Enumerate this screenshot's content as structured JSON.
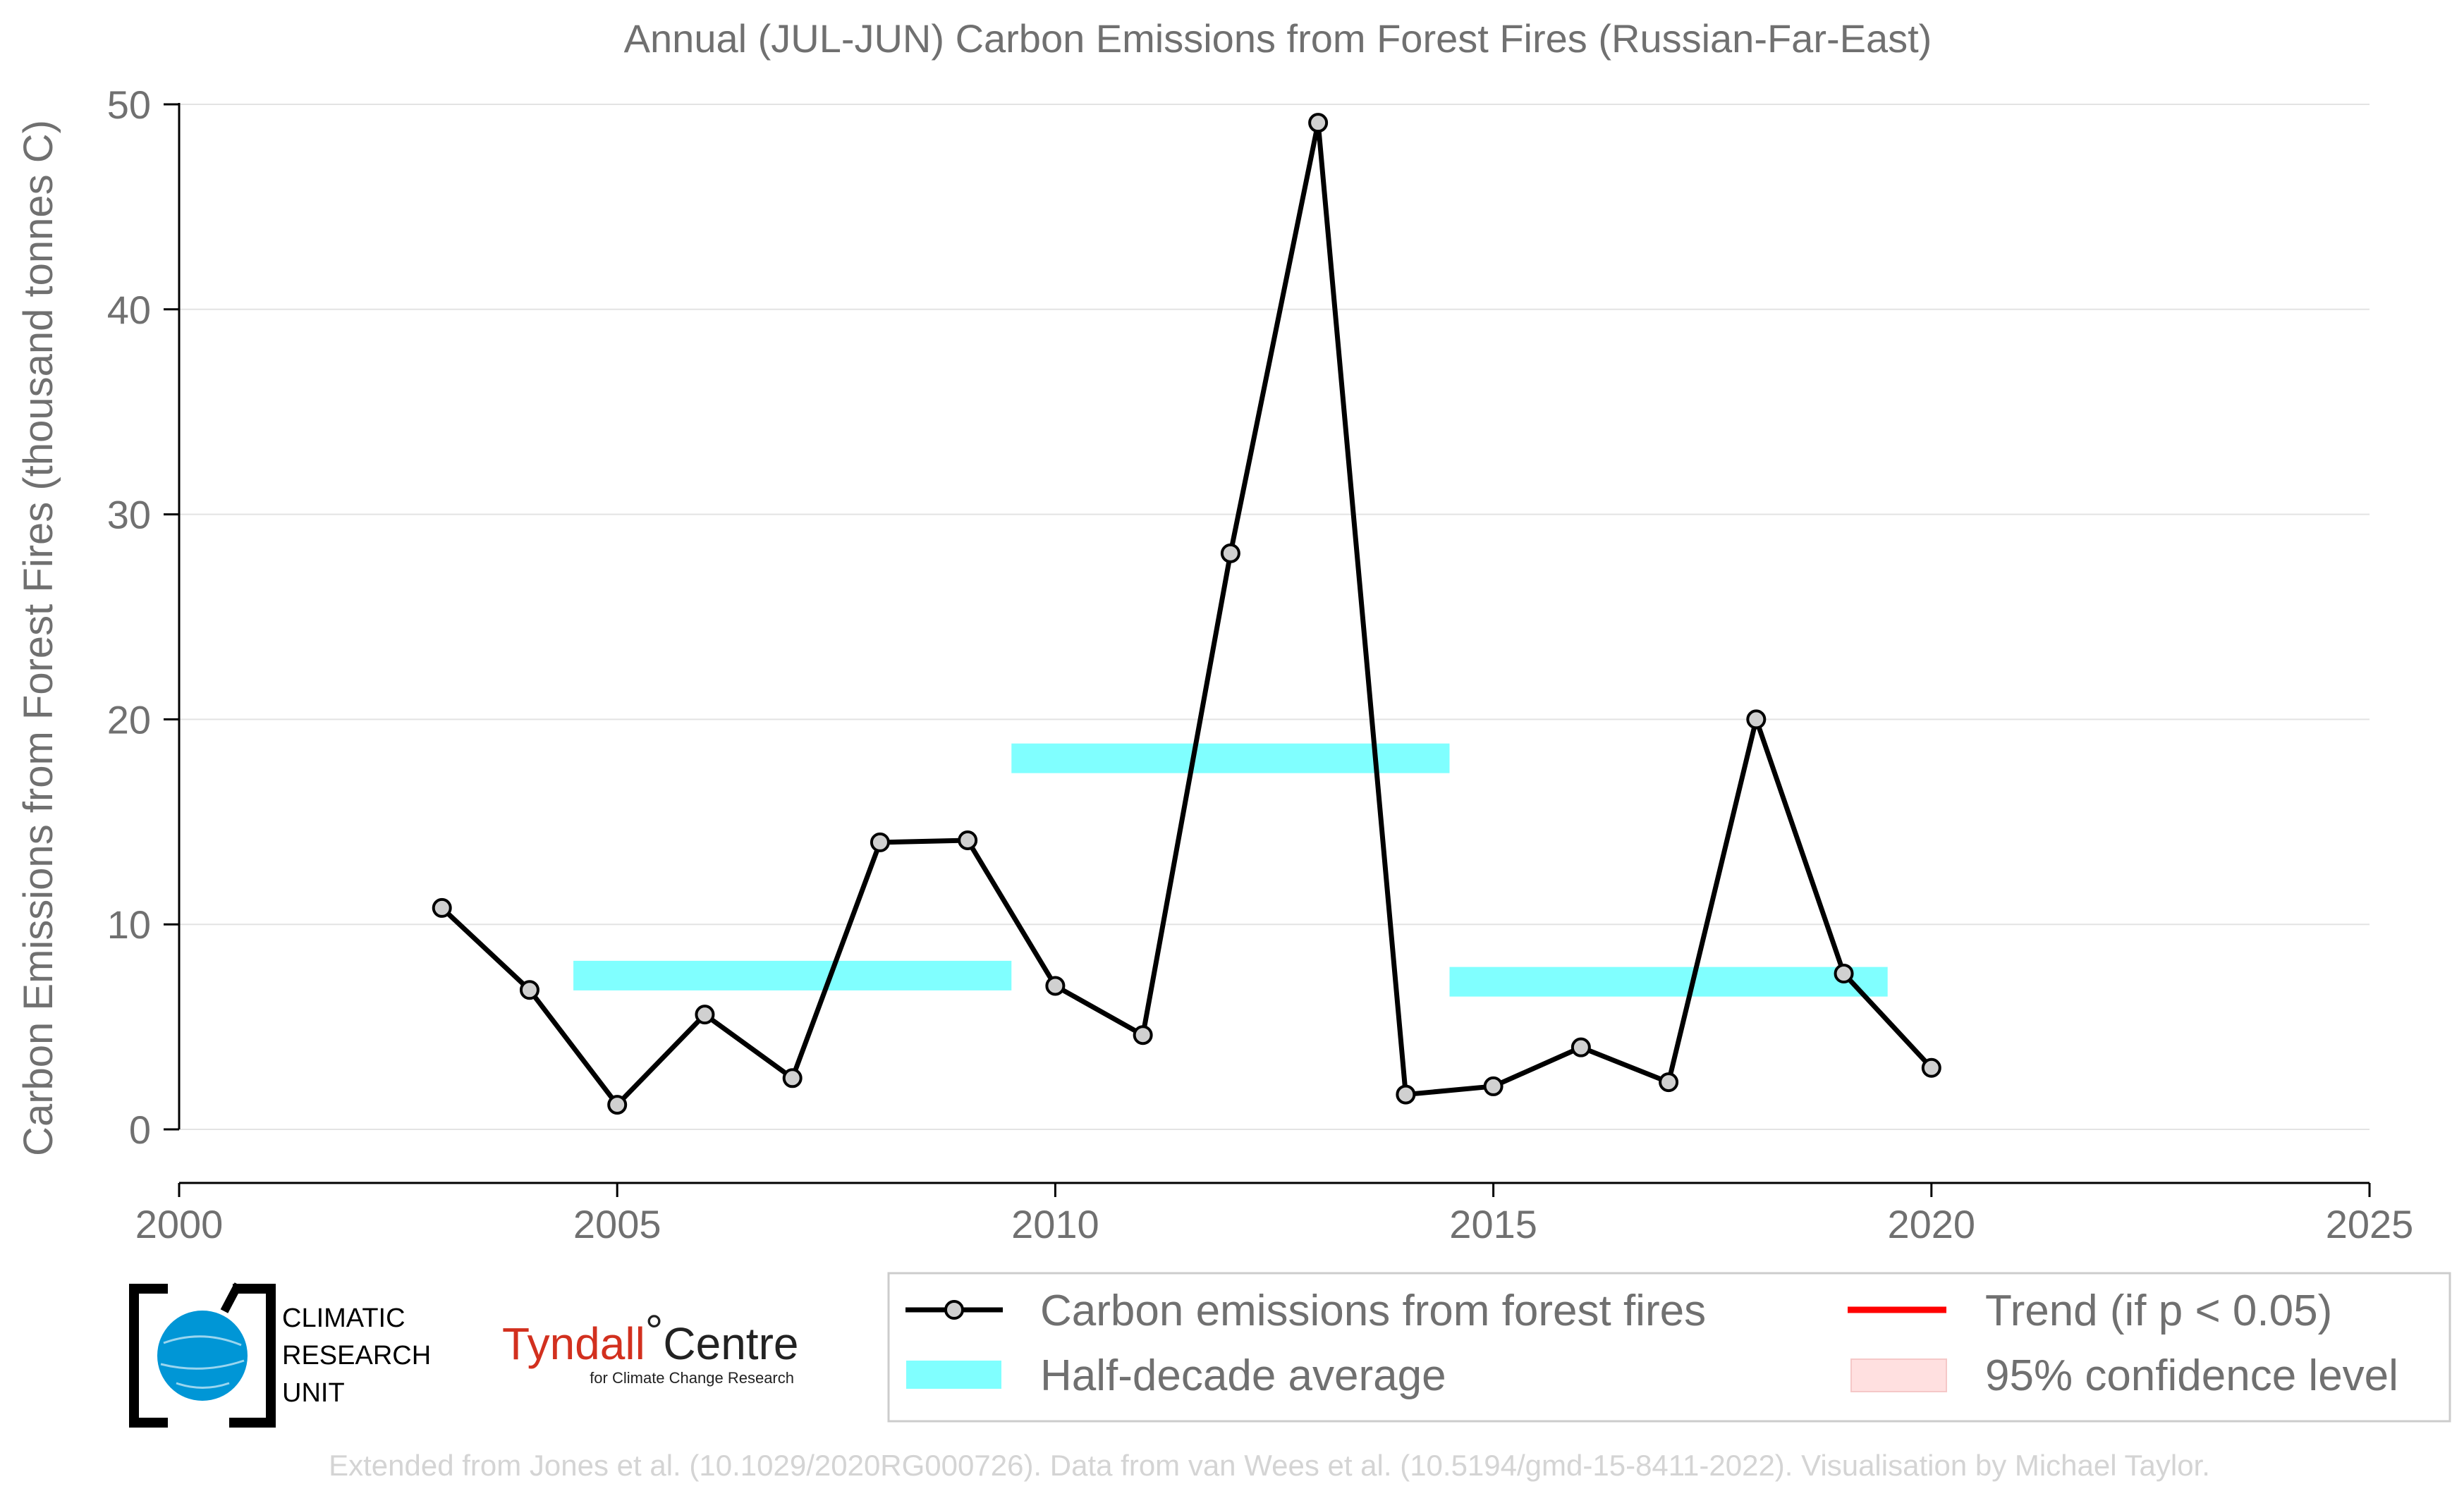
{
  "chart_data": {
    "type": "line",
    "title": "Annual (JUL-JUN) Carbon Emissions from Forest Fires (Russian-Far-East)",
    "xlabel": "",
    "ylabel": "Carbon Emissions from Forest Fires (thousand tonnes C)",
    "xlim": [
      2000,
      2025
    ],
    "ylim": [
      0,
      50
    ],
    "x_ticks": [
      "2000",
      "2005",
      "2010",
      "2015",
      "2020",
      "2025"
    ],
    "y_ticks": [
      "0",
      "10",
      "20",
      "30",
      "40",
      "50"
    ],
    "grid": "horizontal",
    "series": [
      {
        "name": "Carbon emissions from forest fires",
        "x": [
          2003,
          2004,
          2005,
          2006,
          2007,
          2008,
          2009,
          2010,
          2011,
          2012,
          2013,
          2014,
          2015,
          2016,
          2017,
          2018,
          2019,
          2020
        ],
        "values": [
          10.8,
          6.8,
          1.2,
          5.6,
          2.5,
          14.0,
          14.1,
          7.0,
          4.6,
          28.1,
          49.1,
          1.7,
          2.1,
          4.0,
          2.3,
          20.0,
          7.6,
          3.0
        ],
        "color": "#000000",
        "marker_fill": "#d0d0d0"
      }
    ],
    "half_decade_average": {
      "name": "Half-decade average",
      "color": "#80ffff",
      "segments": [
        {
          "x_start": 2004.5,
          "x_end": 2009.5,
          "value": 7.5
        },
        {
          "x_start": 2009.5,
          "x_end": 2014.5,
          "value": 18.1
        },
        {
          "x_start": 2014.5,
          "x_end": 2019.5,
          "value": 7.2
        }
      ]
    },
    "legend": {
      "position": "bottom-right",
      "entries": [
        {
          "label": "Carbon emissions from forest fires",
          "kind": "line-marker",
          "color": "#000000"
        },
        {
          "label": "Trend (if p < 0.05)",
          "kind": "line",
          "color": "#ff0000"
        },
        {
          "label": "Half-decade average",
          "kind": "band",
          "color": "#80ffff"
        },
        {
          "label": "95% confidence level",
          "kind": "patch",
          "color": "#ffe0e0"
        }
      ]
    }
  },
  "logos": {
    "cru": {
      "lines": [
        "CLIMATIC",
        "RESEARCH",
        "UNIT"
      ],
      "icon": "globe-icon",
      "color": "#0096d6"
    },
    "tyndall": {
      "name": "Tyndall",
      "degree": "°",
      "centre": "Centre",
      "subtitle": "for Climate Change Research"
    }
  },
  "footer": "Extended from Jones et al. (10.1029/2020RG000726). Data from van Wees et al. (10.5194/gmd-15-8411-2022). Visualisation by Michael Taylor."
}
